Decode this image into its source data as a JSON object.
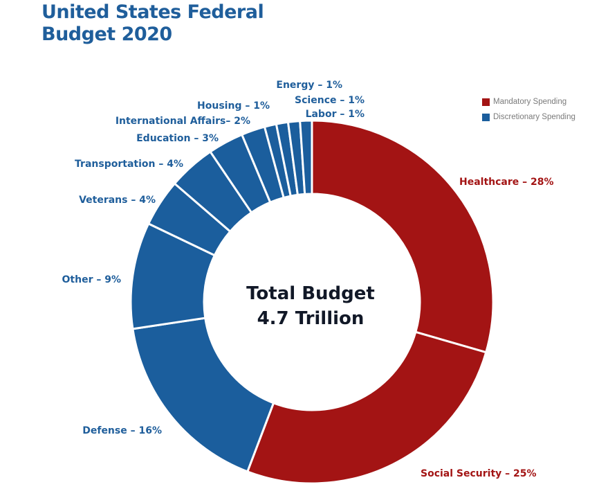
{
  "title_lines": [
    "United States Federal",
    "Budget 2020"
  ],
  "colors": {
    "title": "#1f5e9b",
    "mandatory": "#a31414",
    "discretionary": "#1b5e9d",
    "mandatory_label": "#a31414",
    "discretionary_label": "#1f5e9b"
  },
  "legend": [
    {
      "label": "Mandatory Spending",
      "group": "mandatory"
    },
    {
      "label": "Discretionary Spending",
      "group": "discretionary"
    }
  ],
  "center_text": [
    "Total Budget",
    "4.7 Trillion"
  ],
  "chart_data": {
    "type": "pie",
    "donut": true,
    "title": "United States Federal Budget 2020",
    "total": "4.7 Trillion",
    "legend_position": "top-right",
    "slices": [
      {
        "label": "Healthcare – 28%",
        "name": "Healthcare",
        "value": 28,
        "group": "mandatory"
      },
      {
        "label": "Social Security – 25%",
        "name": "Social Security",
        "value": 25,
        "group": "mandatory"
      },
      {
        "label": "Defense – 16%",
        "name": "Defense",
        "value": 16,
        "group": "discretionary"
      },
      {
        "label": "Other – 9%",
        "name": "Other",
        "value": 9,
        "group": "discretionary"
      },
      {
        "label": "Veterans – 4%",
        "name": "Veterans",
        "value": 4,
        "group": "discretionary"
      },
      {
        "label": "Transportation – 4%",
        "name": "Transportation",
        "value": 4,
        "group": "discretionary"
      },
      {
        "label": "Education – 3%",
        "name": "Education",
        "value": 3,
        "group": "discretionary"
      },
      {
        "label": "International Affairs– 2%",
        "name": "International Affairs",
        "value": 2,
        "group": "discretionary"
      },
      {
        "label": "Housing – 1%",
        "name": "Housing",
        "value": 1,
        "group": "discretionary"
      },
      {
        "label": "Energy – 1%",
        "name": "Energy",
        "value": 1,
        "group": "discretionary"
      },
      {
        "label": "Science – 1%",
        "name": "Science",
        "value": 1,
        "group": "discretionary"
      },
      {
        "label": "Labor – 1%",
        "name": "Labor",
        "value": 1,
        "group": "discretionary"
      }
    ]
  }
}
